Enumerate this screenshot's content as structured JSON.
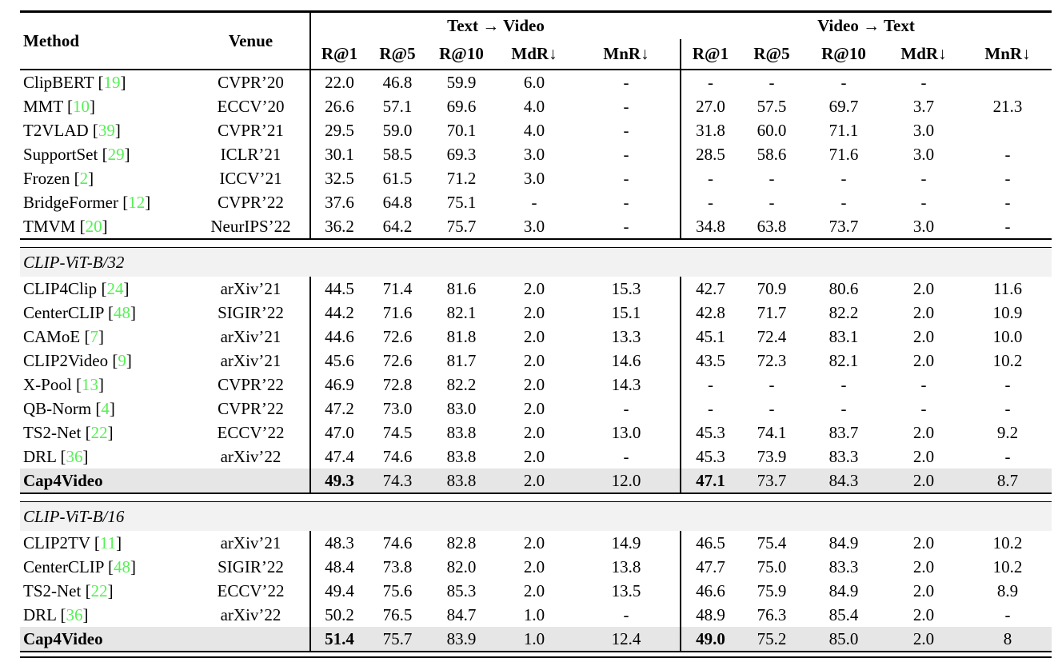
{
  "table": {
    "colors": {
      "citation_green": "#54f154",
      "banner_bg": "#f2f2f2",
      "highlight_bg": "#e6e6e6"
    },
    "cite_open": "[",
    "cite_close": "]",
    "columns": {
      "method": "Method",
      "venue": "Venue",
      "group_t2v": "Text → Video",
      "group_v2t": "Video → Text",
      "metrics": [
        "R@1",
        "R@5",
        "R@10",
        "MdR↓",
        "MnR↓"
      ]
    },
    "sections": [
      {
        "banner": null,
        "rows": [
          {
            "method": "ClipBERT",
            "cite": "19",
            "venue": "CVPR’20",
            "t2v": [
              "22.0",
              "46.8",
              "59.9",
              "6.0",
              "-"
            ],
            "v2t": [
              "-",
              "-",
              "-",
              "-",
              ""
            ]
          },
          {
            "method": "MMT",
            "cite": "10",
            "venue": "ECCV’20",
            "t2v": [
              "26.6",
              "57.1",
              "69.6",
              "4.0",
              "-"
            ],
            "v2t": [
              "27.0",
              "57.5",
              "69.7",
              "3.7",
              "21.3"
            ]
          },
          {
            "method": "T2VLAD",
            "cite": "39",
            "venue": "CVPR’21",
            "t2v": [
              "29.5",
              "59.0",
              "70.1",
              "4.0",
              "-"
            ],
            "v2t": [
              "31.8",
              "60.0",
              "71.1",
              "3.0",
              ""
            ]
          },
          {
            "method": "SupportSet",
            "cite": "29",
            "venue": "ICLR’21",
            "t2v": [
              "30.1",
              "58.5",
              "69.3",
              "3.0",
              "-"
            ],
            "v2t": [
              "28.5",
              "58.6",
              "71.6",
              "3.0",
              "-"
            ]
          },
          {
            "method": "Frozen",
            "cite": "2",
            "venue": "ICCV’21",
            "t2v": [
              "32.5",
              "61.5",
              "71.2",
              "3.0",
              "-"
            ],
            "v2t": [
              "-",
              "-",
              "-",
              "-",
              "-"
            ]
          },
          {
            "method": "BridgeFormer",
            "cite": "12",
            "venue": "CVPR’22",
            "t2v": [
              "37.6",
              "64.8",
              "75.1",
              "-",
              "-"
            ],
            "v2t": [
              "-",
              "-",
              "-",
              "-",
              "-"
            ]
          },
          {
            "method": "TMVM",
            "cite": "20",
            "venue": "NeurIPS’22",
            "t2v": [
              "36.2",
              "64.2",
              "75.7",
              "3.0",
              "-"
            ],
            "v2t": [
              "34.8",
              "63.8",
              "73.7",
              "3.0",
              "-"
            ]
          }
        ]
      },
      {
        "banner": "CLIP-ViT-B/32",
        "rows": [
          {
            "method": "CLIP4Clip",
            "cite": "24",
            "venue": "arXiv’21",
            "t2v": [
              "44.5",
              "71.4",
              "81.6",
              "2.0",
              "15.3"
            ],
            "v2t": [
              "42.7",
              "70.9",
              "80.6",
              "2.0",
              "11.6"
            ]
          },
          {
            "method": "CenterCLIP",
            "cite": "48",
            "venue": "SIGIR’22",
            "t2v": [
              "44.2",
              "71.6",
              "82.1",
              "2.0",
              "15.1"
            ],
            "v2t": [
              "42.8",
              "71.7",
              "82.2",
              "2.0",
              "10.9"
            ]
          },
          {
            "method": "CAMoE",
            "cite": "7",
            "venue": "arXiv’21",
            "t2v": [
              "44.6",
              "72.6",
              "81.8",
              "2.0",
              "13.3"
            ],
            "v2t": [
              "45.1",
              "72.4",
              "83.1",
              "2.0",
              "10.0"
            ]
          },
          {
            "method": "CLIP2Video",
            "cite": "9",
            "venue": "arXiv’21",
            "t2v": [
              "45.6",
              "72.6",
              "81.7",
              "2.0",
              "14.6"
            ],
            "v2t": [
              "43.5",
              "72.3",
              "82.1",
              "2.0",
              "10.2"
            ]
          },
          {
            "method": "X-Pool",
            "cite": "13",
            "venue": "CVPR’22",
            "t2v": [
              "46.9",
              "72.8",
              "82.2",
              "2.0",
              "14.3"
            ],
            "v2t": [
              "-",
              "-",
              "-",
              "-",
              "-"
            ]
          },
          {
            "method": "QB-Norm",
            "cite": "4",
            "venue": "CVPR’22",
            "t2v": [
              "47.2",
              "73.0",
              "83.0",
              "2.0",
              "-"
            ],
            "v2t": [
              "-",
              "-",
              "-",
              "-",
              "-"
            ]
          },
          {
            "method": "TS2-Net",
            "cite": "22",
            "venue": "ECCV’22",
            "t2v": [
              "47.0",
              "74.5",
              "83.8",
              "2.0",
              "13.0"
            ],
            "v2t": [
              "45.3",
              "74.1",
              "83.7",
              "2.0",
              "9.2"
            ]
          },
          {
            "method": "DRL",
            "cite": "36",
            "venue": "arXiv’22",
            "t2v": [
              "47.4",
              "74.6",
              "83.8",
              "2.0",
              "-"
            ],
            "v2t": [
              "45.3",
              "73.9",
              "83.3",
              "2.0",
              "-"
            ]
          },
          {
            "method": "Cap4Video",
            "cite": null,
            "venue": "",
            "highlight": true,
            "bold": {
              "t2v": [
                0
              ],
              "v2t": [
                0
              ]
            },
            "t2v": [
              "49.3",
              "74.3",
              "83.8",
              "2.0",
              "12.0"
            ],
            "v2t": [
              "47.1",
              "73.7",
              "84.3",
              "2.0",
              "8.7"
            ]
          }
        ]
      },
      {
        "banner": "CLIP-ViT-B/16",
        "rows": [
          {
            "method": "CLIP2TV",
            "cite": "11",
            "venue": "arXiv’21",
            "t2v": [
              "48.3",
              "74.6",
              "82.8",
              "2.0",
              "14.9"
            ],
            "v2t": [
              "46.5",
              "75.4",
              "84.9",
              "2.0",
              "10.2"
            ]
          },
          {
            "method": "CenterCLIP",
            "cite": "48",
            "venue": "SIGIR’22",
            "t2v": [
              "48.4",
              "73.8",
              "82.0",
              "2.0",
              "13.8"
            ],
            "v2t": [
              "47.7",
              "75.0",
              "83.3",
              "2.0",
              "10.2"
            ]
          },
          {
            "method": "TS2-Net",
            "cite": "22",
            "venue": "ECCV’22",
            "t2v": [
              "49.4",
              "75.6",
              "85.3",
              "2.0",
              "13.5"
            ],
            "v2t": [
              "46.6",
              "75.9",
              "84.9",
              "2.0",
              "8.9"
            ]
          },
          {
            "method": "DRL",
            "cite": "36",
            "venue": "arXiv’22",
            "t2v": [
              "50.2",
              "76.5",
              "84.7",
              "1.0",
              "-"
            ],
            "v2t": [
              "48.9",
              "76.3",
              "85.4",
              "2.0",
              "-"
            ]
          },
          {
            "method": "Cap4Video",
            "cite": null,
            "venue": "",
            "highlight": true,
            "bold": {
              "t2v": [
                0
              ],
              "v2t": [
                0
              ]
            },
            "t2v": [
              "51.4",
              "75.7",
              "83.9",
              "1.0",
              "12.4"
            ],
            "v2t": [
              "49.0",
              "75.2",
              "85.0",
              "2.0",
              "8"
            ]
          }
        ]
      }
    ]
  }
}
